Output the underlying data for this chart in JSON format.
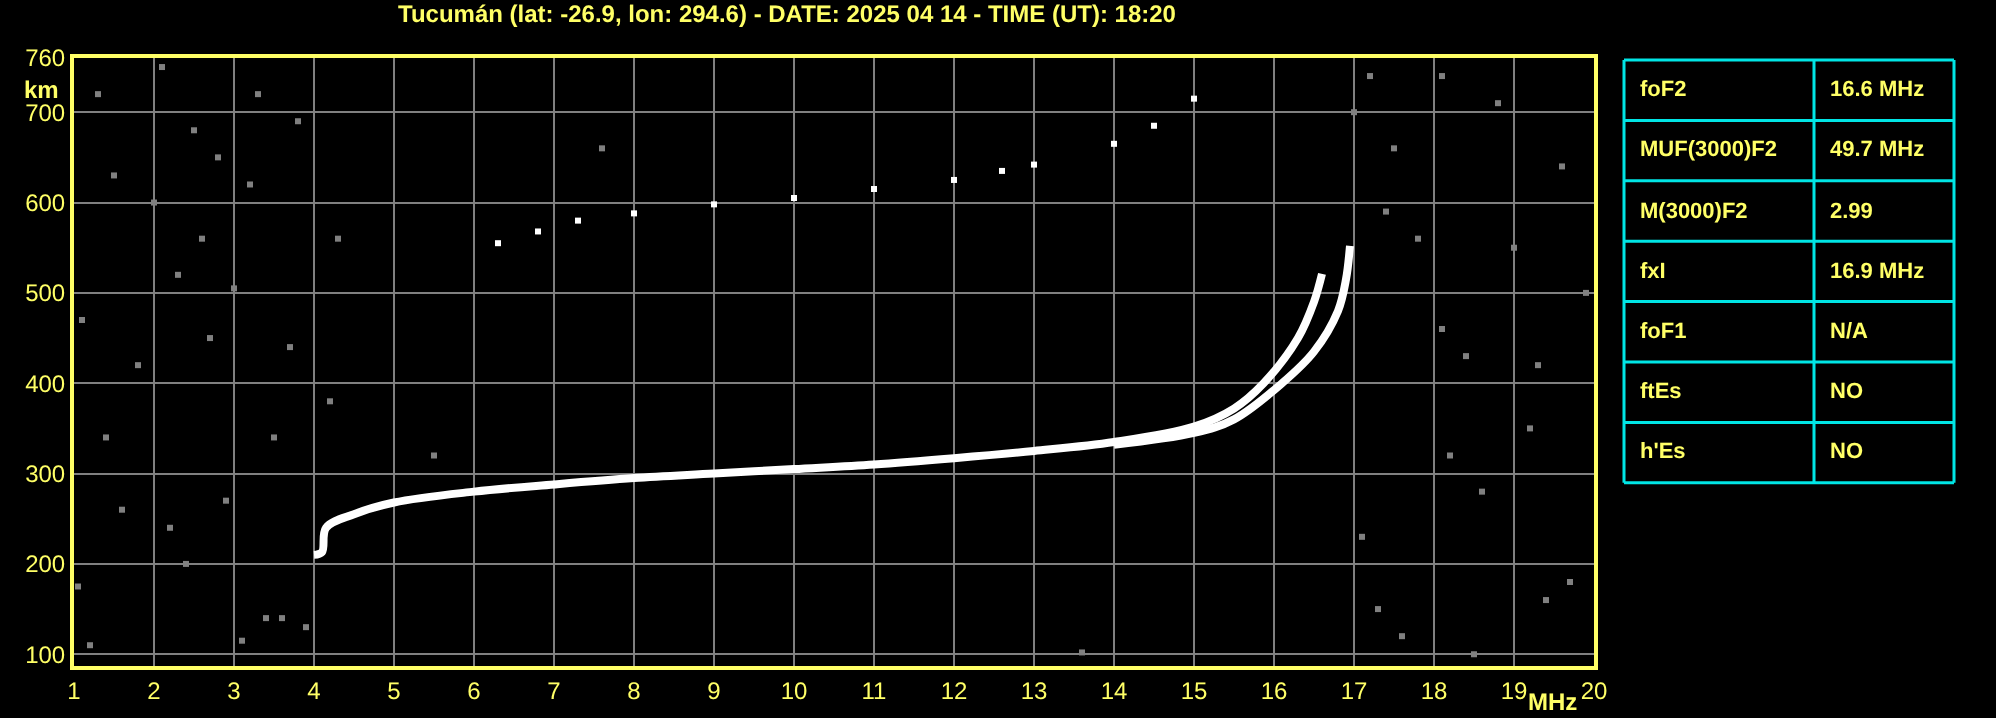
{
  "chart_data": {
    "type": "line",
    "title": "Tucumán (lat: -26.9, lon: 294.6) - DATE: 2025 04 14 - TIME (UT): 18:20",
    "xlabel": "MHz",
    "ylabel": "km",
    "xlim": [
      1,
      20
    ],
    "xticks": [
      1,
      2,
      3,
      4,
      5,
      6,
      7,
      8,
      9,
      10,
      11,
      12,
      13,
      14,
      15,
      16,
      17,
      18,
      19,
      20
    ],
    "ylim": [
      87,
      760
    ],
    "yticks": [
      100,
      200,
      300,
      400,
      500,
      600,
      700,
      760
    ],
    "grid": true,
    "series": [
      {
        "marker": "none",
        "color": "#ffffff",
        "x": [
          4.0,
          4.1,
          4.15,
          4.5,
          5,
          6,
          7,
          8,
          9,
          10,
          11,
          12,
          13,
          14,
          15,
          15.5,
          15.87,
          16.3,
          16.5,
          16.6
        ],
        "values": [
          210,
          213,
          240,
          255,
          268,
          280,
          288,
          295,
          300,
          305,
          310,
          317,
          325,
          335,
          352,
          372,
          400,
          450,
          490,
          521
        ]
      },
      {
        "marker": "none",
        "color": "#ffffff",
        "x": [
          14,
          15,
          15.5,
          16.1,
          16.5,
          16.8,
          16.9,
          16.95
        ],
        "values": [
          332,
          345,
          360,
          400,
          435,
          480,
          515,
          552
        ]
      },
      {
        "type": "scatter",
        "marker": "square",
        "color": "#ffffff",
        "x": [
          6.3,
          6.8,
          7.3,
          8,
          9,
          10,
          11,
          12,
          12.6,
          13,
          14,
          14.5,
          15
        ],
        "values": [
          555,
          568,
          580,
          588,
          598,
          605,
          615,
          625,
          635,
          642,
          665,
          685,
          715
        ]
      },
      {
        "type": "scatter",
        "marker": "square",
        "color": "#808080",
        "x": [
          1.1,
          1.2,
          1.3,
          1.5,
          1.6,
          1.8,
          2.0,
          2.1,
          2.3,
          2.4,
          2.5,
          2.6,
          2.8,
          3.0,
          3.1,
          3.3,
          3.4,
          3.5,
          3.6,
          3.7,
          3.8,
          4.2,
          4.3,
          1.4,
          2.2,
          2.9,
          3.9,
          1.05,
          2.7,
          3.2,
          5.5,
          7.6,
          13.6,
          17.0,
          17.2,
          17.4,
          17.5,
          17.8,
          18.1,
          18.2,
          18.4,
          18.6,
          18.8,
          19.0,
          19.2,
          19.4,
          19.6,
          19.7,
          17.1,
          17.6,
          18.5,
          19.9,
          18.1,
          17.3,
          19.3
        ],
        "values": [
          470,
          110,
          720,
          630,
          260,
          420,
          600,
          750,
          520,
          200,
          680,
          560,
          650,
          505,
          115,
          720,
          140,
          340,
          140,
          440,
          690,
          380,
          560,
          340,
          240,
          270,
          130,
          175,
          450,
          620,
          320,
          660,
          102,
          700,
          740,
          590,
          660,
          560,
          460,
          320,
          430,
          280,
          710,
          550,
          350,
          160,
          640,
          180,
          230,
          120,
          100,
          500,
          740,
          150,
          420
        ]
      }
    ],
    "annotations": [
      "foF2",
      "16.6 MHz",
      "MUF(3000)F2",
      "49.7 MHz",
      "M(3000)F2",
      "2.99",
      "fxI",
      "16.9 MHz",
      "foF1",
      "N/A",
      "ftEs",
      "NO",
      "h'Es",
      "NO"
    ]
  }
}
